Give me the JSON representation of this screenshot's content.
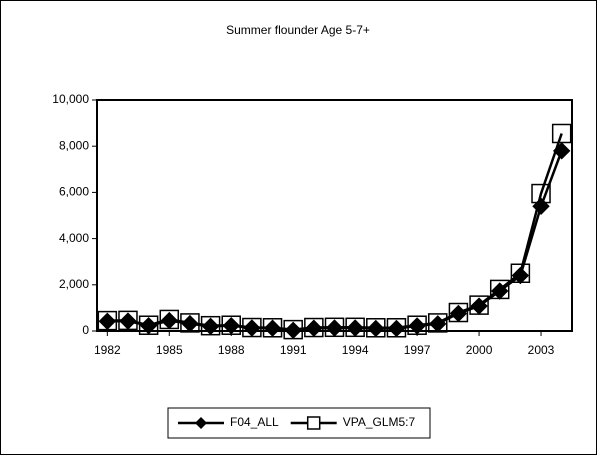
{
  "chart_data": {
    "type": "line",
    "title": "Summer flounder Age 5-7+",
    "categories": [
      "1982",
      null,
      null,
      "1985",
      null,
      null,
      "1988",
      null,
      null,
      "1991",
      null,
      null,
      "1994",
      null,
      null,
      "1997",
      null,
      null,
      "2000",
      null,
      null,
      "2003",
      null
    ],
    "series": [
      {
        "name": "F04_ALL",
        "color": "#000000",
        "marker": "diamond",
        "values": [
          420,
          430,
          230,
          450,
          320,
          200,
          230,
          130,
          120,
          30,
          120,
          130,
          130,
          110,
          110,
          220,
          310,
          760,
          1080,
          1730,
          2400,
          5400,
          7800
        ]
      },
      {
        "name": "VPA_GLM5:7",
        "color": "#000000",
        "marker": "square",
        "values": [
          450,
          460,
          250,
          500,
          350,
          230,
          250,
          150,
          140,
          60,
          150,
          160,
          160,
          140,
          140,
          250,
          350,
          800,
          1120,
          1800,
          2500,
          5950,
          8550
        ]
      }
    ],
    "ylim": [
      0,
      10000
    ],
    "yticks": [
      0,
      {
        "value": 2000,
        "label": "2,000"
      },
      {
        "value": 4000,
        "label": "4,000"
      },
      {
        "value": 6000,
        "label": "6,000"
      },
      {
        "value": 8000,
        "label": "8,000"
      },
      {
        "value": 10000,
        "label": "10,000"
      }
    ],
    "legend": "bottom"
  }
}
